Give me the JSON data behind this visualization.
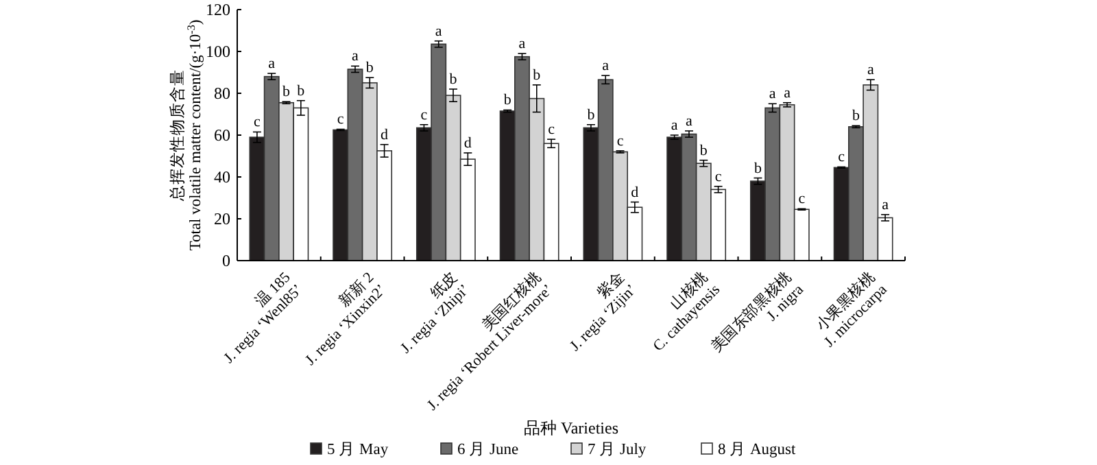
{
  "chart_data": {
    "type": "bar",
    "ylabel": "总挥发性物质含量\nTotal volatile matter content/(g·10$^{-3}$)",
    "xlabel": "品种 Varieties",
    "categories": [
      "温 185\nJ. regia ‘Wenl85’",
      "新新 2\nJ. regia ‘Xinxin2’",
      "纸皮\nJ. regia ‘Zhipi’",
      "美国红核桃\nJ. regia ‘Robert Liver-more’",
      "紫金\nJ. regia ‘Zijin’",
      "山核桃\nC. cathayensis",
      "美国东部黑核桃\nJ. nigra",
      "小果黑核桃\nJ. microcarpa"
    ],
    "ylim": [
      0,
      120
    ],
    "yticks": [
      0,
      20,
      40,
      60,
      80,
      100,
      120
    ],
    "legend": "bottom",
    "grid": false,
    "series": [
      {
        "name": "5 月 May",
        "color": "#231f20",
        "values": [
          59,
          62.5,
          63.5,
          71.5,
          63.5,
          59,
          38,
          44.5
        ],
        "errors": [
          2.5,
          0.3,
          1.5,
          0.5,
          1.5,
          1,
          1.5,
          0.3
        ],
        "value_labels": [
          "c",
          "c",
          "c",
          "b",
          "b",
          "a",
          "b",
          "c"
        ]
      },
      {
        "name": "6 月 June",
        "color": "#6a6a6a",
        "values": [
          88,
          91.5,
          103.5,
          97.5,
          86.5,
          60.5,
          73,
          64
        ],
        "errors": [
          1.5,
          1.5,
          1.5,
          1.5,
          2,
          1.5,
          2,
          0.5
        ],
        "value_labels": [
          "a",
          "a",
          "a",
          "a",
          "a",
          "a",
          "a",
          "b"
        ]
      },
      {
        "name": "7 月 July",
        "color": "#d3d3d3",
        "values": [
          75.5,
          85,
          79,
          77.5,
          52,
          46.5,
          74.5,
          84
        ],
        "errors": [
          0.5,
          2.5,
          3,
          6.5,
          0.5,
          1.5,
          1,
          2.5
        ],
        "value_labels": [
          "b",
          "b",
          "b",
          "b",
          "c",
          "b",
          "a",
          "a"
        ]
      },
      {
        "name": "8 月 August",
        "color": "#ffffff",
        "values": [
          73,
          52.5,
          48.5,
          56,
          25.5,
          34,
          24.5,
          20.5
        ],
        "errors": [
          3.5,
          3,
          3,
          2,
          2.5,
          1.5,
          0.3,
          1.5
        ],
        "value_labels": [
          "b",
          "d",
          "d",
          "c",
          "d",
          "c",
          "c",
          "a"
        ]
      }
    ]
  }
}
